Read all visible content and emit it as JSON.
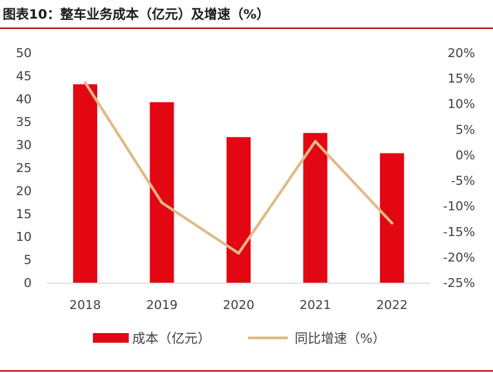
{
  "title": "图表10：整车业务成本（亿元）及增速（%）",
  "colors": {
    "bar": "#e30613",
    "line": "#e0bb86",
    "axis": "#d9d9d9",
    "rule": "#c00000"
  },
  "chart_data": {
    "type": "bar+line",
    "title": "图表10：整车业务成本（亿元）及增速（%）",
    "categories": [
      "2018",
      "2019",
      "2020",
      "2021",
      "2022"
    ],
    "series": [
      {
        "name": "成本（亿元）",
        "type": "bar",
        "axis": "left",
        "values": [
          43.2,
          39.3,
          31.7,
          32.6,
          28.2
        ]
      },
      {
        "name": "同比增速（%）",
        "type": "line",
        "axis": "right",
        "values": [
          14.2,
          -9.3,
          -19.2,
          2.7,
          -13.3
        ]
      }
    ],
    "y_left": {
      "min": 0,
      "max": 50,
      "step": 5,
      "ticks": [
        "0",
        "5",
        "10",
        "15",
        "20",
        "25",
        "30",
        "35",
        "40",
        "45",
        "50"
      ]
    },
    "y_right": {
      "min": -25,
      "max": 20,
      "step": 5,
      "ticks": [
        "-25%",
        "-20%",
        "-15%",
        "-10%",
        "-5%",
        "0%",
        "5%",
        "10%",
        "15%",
        "20%"
      ]
    },
    "legend": {
      "position": "bottom",
      "items": [
        "成本（亿元）",
        "同比增速（%）"
      ]
    }
  }
}
